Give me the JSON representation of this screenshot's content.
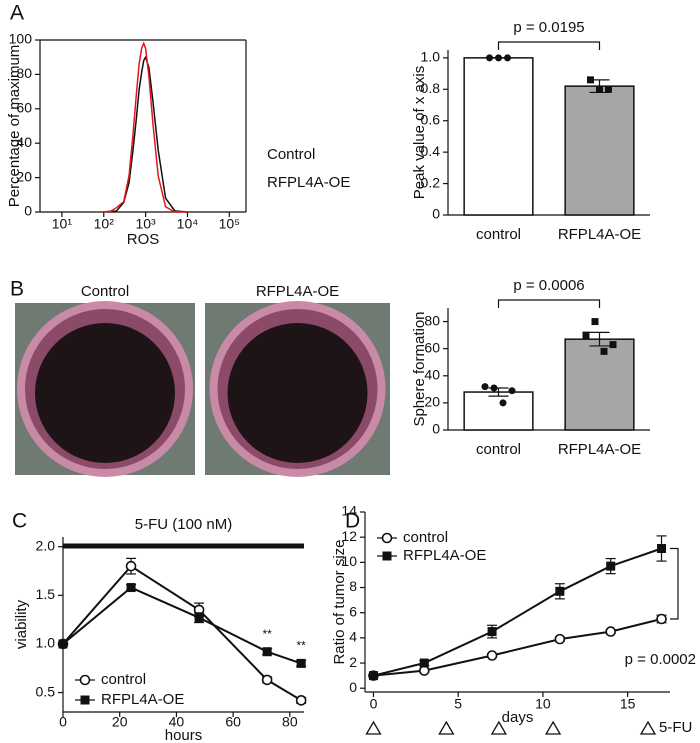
{
  "chart_data": [
    {
      "panel": "A",
      "type": "curve",
      "xscale": "log",
      "xlabel": "ROS",
      "ylabel": "Percentage of maximum",
      "frame": true,
      "xlim": [
        3,
        250000
      ],
      "ylim": [
        0,
        100
      ],
      "xticks": [
        {
          "value": 10,
          "label": "10¹"
        },
        {
          "value": 100,
          "label": "10²"
        },
        {
          "value": 1000,
          "label": "10³"
        },
        {
          "value": 10000,
          "label": "10⁴"
        },
        {
          "value": 100000,
          "label": "10⁵"
        }
      ],
      "yticks": [
        0,
        20,
        40,
        60,
        80,
        100
      ],
      "x": [
        100,
        150,
        200,
        300,
        400,
        500,
        600,
        700,
        800,
        900,
        1000,
        1200,
        1500,
        2000,
        3000,
        5000,
        10000
      ],
      "series": [
        {
          "name": "Control",
          "color": "#111111",
          "values": [
            0,
            0.1,
            0.6,
            5.5,
            17,
            36,
            54,
            71,
            81,
            88,
            90,
            84,
            64,
            36,
            8,
            0.6,
            0
          ]
        },
        {
          "name": "RFPL4A-OE",
          "color": "#e8141b",
          "values": [
            0,
            0.6,
            2.5,
            6,
            21,
            45,
            68,
            86,
            95,
            98,
            95,
            79,
            51,
            21,
            3,
            0,
            0
          ]
        }
      ]
    },
    {
      "type": "bar",
      "ylabel": "Peak value of x axis",
      "p_value": "p = 0.0195",
      "categories": [
        "control",
        "RFPL4A-OE"
      ],
      "values": [
        1.0,
        0.82
      ],
      "errors": [
        0.0,
        0.04
      ],
      "colors": [
        "#ffffff",
        "#a6a6a6"
      ],
      "points": [
        [
          1.0,
          1.0,
          1.0
        ],
        [
          0.86,
          0.8,
          0.8
        ]
      ],
      "ylim": [
        0,
        1.05
      ],
      "yticks": [
        0,
        0.2,
        0.4,
        0.6,
        0.8,
        {
          "value": 1,
          "label": "1.0"
        }
      ]
    },
    {
      "panel": "B",
      "type": "images",
      "labels": [
        "Control",
        "RFPL4A-OE"
      ]
    },
    {
      "type": "bar",
      "ylabel": "Sphere formation",
      "p_value": "p = 0.0006",
      "categories": [
        "control",
        "RFPL4A-OE"
      ],
      "values": [
        28,
        67
      ],
      "errors": [
        3,
        5
      ],
      "colors": [
        "#ffffff",
        "#a6a6a6"
      ],
      "points": [
        [
          32,
          31,
          20,
          29
        ],
        [
          70,
          80,
          58,
          63
        ]
      ],
      "ylim": [
        0,
        90
      ],
      "yticks": [
        0,
        20,
        40,
        60,
        80
      ]
    },
    {
      "panel": "C",
      "type": "line",
      "xlabel": "hours",
      "ylabel": "viability",
      "legend": "lower left",
      "treatment_label": "5-FU (100 nM)",
      "xlim": [
        0,
        85
      ],
      "ylim": [
        0.3,
        2.1
      ],
      "xticks": [
        0,
        20,
        40,
        60,
        80
      ],
      "yticks": [
        0.5,
        {
          "value": 1,
          "label": "1.0"
        },
        1.5,
        {
          "value": 2,
          "label": "2.0"
        }
      ],
      "x": [
        0,
        24,
        48,
        72,
        84
      ],
      "series": [
        {
          "name": "control",
          "marker": "circle-open",
          "values": [
            1,
            1.8,
            1.35,
            0.63,
            0.42
          ],
          "errors": [
            0,
            0.08,
            0.07,
            0.03,
            0.03
          ]
        },
        {
          "name": "RFPL4A-OE",
          "marker": "square",
          "values": [
            1,
            1.58,
            1.27,
            0.92,
            0.8
          ],
          "errors": [
            0,
            0.03,
            0.05,
            0.03,
            0.03
          ]
        }
      ],
      "significance": [
        {
          "x": 72,
          "label": "**"
        },
        {
          "x": 84,
          "label": "**"
        }
      ]
    },
    {
      "panel": "D",
      "type": "line",
      "xlabel": "days",
      "ylabel": "Ratio of tumor size",
      "legend": "upper left",
      "p_value": "p = 0.0002",
      "treatment": {
        "label": "5-FU",
        "x": [
          0,
          4.3,
          7.4,
          10.6
        ]
      },
      "xlim": [
        -0.5,
        17.5
      ],
      "ylim": [
        -0.3,
        14
      ],
      "xticks": [
        0,
        5,
        10,
        15
      ],
      "yticks": [
        0,
        2,
        4,
        6,
        8,
        10,
        12,
        14
      ],
      "x": [
        0,
        3,
        7,
        11,
        14,
        17
      ],
      "series": [
        {
          "name": "control",
          "marker": "circle-open",
          "values": [
            1,
            1.4,
            2.6,
            3.9,
            4.5,
            5.5
          ],
          "errors": [
            0.1,
            0.1,
            0.15,
            0.15,
            0.15,
            0.3
          ]
        },
        {
          "name": "RFPL4A-OE",
          "marker": "square",
          "values": [
            1,
            2,
            4.5,
            7.7,
            9.7,
            11.1
          ],
          "errors": [
            0.1,
            0.2,
            0.5,
            0.6,
            0.6,
            1.0
          ]
        }
      ]
    }
  ]
}
